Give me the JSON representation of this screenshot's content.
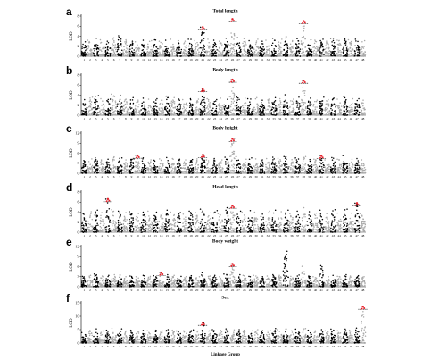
{
  "chart_data": [
    {
      "id": "a",
      "type": "scatter",
      "title": "Total length",
      "ylabel": "LOD",
      "ylim": [
        0,
        8
      ],
      "yticks": [
        0,
        2,
        4,
        6,
        8
      ],
      "colors": {
        "odd": "#000000",
        "even": "#a9a9a9",
        "peak": "#e8202a"
      },
      "peaks": [
        {
          "lg": 21,
          "lod": 5.8
        },
        {
          "lg": 26,
          "lod": 7.4
        },
        {
          "lg": 38,
          "lod": 7.0
        }
      ],
      "series": [
        {
          "name": "LG",
          "values": [
            2.9,
            3.2,
            3.6,
            3.3,
            3.0,
            3.7,
            4.1,
            3.3,
            3.0,
            2.9,
            3.2,
            3.1,
            3.3,
            3.0,
            3.2,
            3.4,
            3.1,
            3.0,
            3.4,
            3.1,
            5.8,
            3.4,
            3.2,
            3.0,
            3.6,
            7.4,
            3.7,
            3.5,
            3.1,
            3.4,
            3.0,
            3.2,
            3.6,
            3.4,
            3.9,
            3.1,
            3.5,
            7.0,
            3.3,
            3.2,
            3.4,
            3.0,
            3.6,
            3.2,
            3.5,
            3.3,
            3.4,
            3.1
          ]
        }
      ]
    },
    {
      "id": "b",
      "type": "scatter",
      "title": "Body length",
      "ylabel": "LOD",
      "ylim": [
        0,
        8
      ],
      "yticks": [
        0,
        2,
        4,
        6,
        8
      ],
      "colors": {
        "odd": "#000000",
        "even": "#a9a9a9",
        "peak": "#e8202a"
      },
      "peaks": [
        {
          "lg": 21,
          "lod": 5.2
        },
        {
          "lg": 26,
          "lod": 7.1
        },
        {
          "lg": 38,
          "lod": 6.9
        }
      ],
      "series": [
        {
          "name": "LG",
          "values": [
            3.1,
            3.6,
            3.9,
            3.3,
            3.2,
            4.2,
            4.0,
            3.2,
            3.5,
            3.0,
            3.4,
            3.2,
            3.3,
            3.0,
            3.8,
            3.5,
            3.2,
            3.1,
            3.3,
            3.2,
            5.2,
            3.3,
            3.1,
            3.4,
            3.8,
            7.1,
            3.6,
            3.4,
            3.3,
            3.5,
            3.0,
            3.2,
            3.5,
            3.3,
            4.1,
            3.2,
            3.6,
            6.9,
            3.4,
            3.0,
            3.6,
            3.1,
            3.4,
            3.2,
            3.7,
            3.3,
            3.3,
            3.0
          ]
        }
      ]
    },
    {
      "id": "c",
      "type": "scatter",
      "title": "Body height",
      "ylabel": "LOD",
      "ylim": [
        0,
        12
      ],
      "yticks": [
        0,
        3,
        6,
        9,
        12
      ],
      "colors": {
        "odd": "#000000",
        "even": "#a9a9a9",
        "peak": "#e8202a"
      },
      "peaks": [
        {
          "lg": 10,
          "lod": 5.3
        },
        {
          "lg": 21,
          "lod": 5.5
        },
        {
          "lg": 26,
          "lod": 10.3
        },
        {
          "lg": 41,
          "lod": 5.2
        }
      ],
      "series": [
        {
          "name": "LG",
          "values": [
            3.8,
            4.3,
            4.6,
            4.0,
            4.2,
            4.9,
            4.6,
            4.0,
            4.3,
            5.3,
            4.6,
            4.0,
            3.9,
            4.3,
            4.7,
            4.4,
            4.2,
            4.0,
            4.1,
            4.3,
            5.5,
            4.0,
            4.4,
            4.0,
            4.8,
            10.3,
            5.0,
            4.2,
            4.6,
            4.3,
            4.0,
            4.4,
            4.8,
            4.5,
            5.0,
            4.3,
            4.6,
            5.0,
            4.1,
            4.2,
            5.2,
            4.0,
            4.7,
            4.2,
            5.3,
            4.2,
            4.4,
            4.0
          ]
        }
      ]
    },
    {
      "id": "d",
      "type": "scatter",
      "title": "Head length",
      "ylabel": "LOD",
      "ylim": [
        0,
        8
      ],
      "yticks": [
        0,
        2,
        4,
        6,
        8
      ],
      "colors": {
        "odd": "#000000",
        "even": "#a9a9a9",
        "peak": "#e8202a"
      },
      "peaks": [
        {
          "lg": 5,
          "lod": 6.6
        },
        {
          "lg": 26,
          "lod": 5.3
        },
        {
          "lg": 47,
          "lod": 5.8
        }
      ],
      "series": [
        {
          "name": "LG",
          "values": [
            3.7,
            4.1,
            4.4,
            3.9,
            6.6,
            4.5,
            4.2,
            3.9,
            4.1,
            3.7,
            4.0,
            4.2,
            4.0,
            3.8,
            4.4,
            4.0,
            3.9,
            3.6,
            4.2,
            3.9,
            4.6,
            3.9,
            4.3,
            3.7,
            4.9,
            5.3,
            4.2,
            4.0,
            4.3,
            4.0,
            3.6,
            4.2,
            4.4,
            4.1,
            4.4,
            3.7,
            4.2,
            4.9,
            4.1,
            3.8,
            4.4,
            3.7,
            4.5,
            3.8,
            4.6,
            3.8,
            5.8,
            3.7
          ]
        }
      ]
    },
    {
      "id": "e",
      "type": "scatter",
      "title": "Body weight",
      "ylabel": "LOD",
      "ylim": [
        0,
        12
      ],
      "yticks": [
        0,
        3,
        6,
        9,
        12
      ],
      "colors": {
        "odd": "#000000",
        "even": "#a9a9a9",
        "peak": "#e8202a"
      },
      "peaks": [
        {
          "lg": 14,
          "lod": 4.2
        },
        {
          "lg": 26,
          "lod": 6.8
        }
      ],
      "series": [
        {
          "name": "LG",
          "values": [
            3.1,
            3.4,
            3.8,
            3.2,
            3.4,
            3.6,
            3.5,
            3.0,
            3.2,
            3.0,
            3.4,
            3.1,
            3.3,
            4.2,
            3.6,
            3.4,
            3.1,
            3.0,
            3.3,
            3.0,
            4.2,
            3.2,
            3.4,
            3.0,
            3.8,
            6.8,
            3.6,
            3.4,
            3.1,
            3.4,
            3.0,
            3.2,
            3.6,
            3.4,
            10.6,
            3.1,
            3.5,
            6.1,
            3.2,
            3.0,
            6.3,
            3.0,
            3.4,
            3.1,
            3.6,
            3.2,
            3.3,
            3.0
          ]
        }
      ]
    },
    {
      "id": "f",
      "type": "scatter",
      "title": "Sex",
      "ylabel": "LOD",
      "ylim": [
        0,
        15
      ],
      "yticks": [
        0,
        5,
        10,
        15
      ],
      "colors": {
        "odd": "#000000",
        "even": "#a9a9a9",
        "peak": "#e8202a"
      },
      "peaks": [
        {
          "lg": 21,
          "lod": 7.6
        },
        {
          "lg": 48,
          "lod": 13.6
        }
      ],
      "series": [
        {
          "name": "LG",
          "values": [
            3.9,
            4.7,
            5.3,
            4.5,
            4.8,
            5.5,
            5.3,
            4.5,
            4.8,
            4.4,
            4.7,
            4.6,
            4.8,
            4.5,
            5.0,
            4.8,
            4.5,
            4.6,
            4.9,
            4.5,
            7.6,
            4.6,
            5.0,
            4.7,
            5.3,
            4.9,
            5.0,
            4.8,
            4.6,
            5.0,
            4.6,
            4.8,
            5.4,
            5.0,
            5.3,
            4.6,
            5.2,
            5.4,
            4.8,
            4.6,
            5.0,
            4.6,
            5.2,
            4.6,
            5.2,
            4.8,
            5.6,
            13.6
          ]
        }
      ]
    }
  ],
  "x_axis": {
    "title": "Linkage Group",
    "tick_labels": [
      "1",
      "2",
      "3",
      "4",
      "5",
      "6",
      "7",
      "8",
      "9",
      "10",
      "11",
      "12",
      "13",
      "14",
      "15",
      "16",
      "17",
      "18",
      "19",
      "20",
      "21",
      "22",
      "23",
      "24",
      "25",
      "26",
      "27",
      "28",
      "29",
      "30",
      "31",
      "32",
      "33",
      "34",
      "35",
      "36",
      "37",
      "38",
      "39",
      "40",
      "41",
      "42",
      "43",
      "44",
      "45",
      "46",
      "47",
      "48"
    ]
  }
}
